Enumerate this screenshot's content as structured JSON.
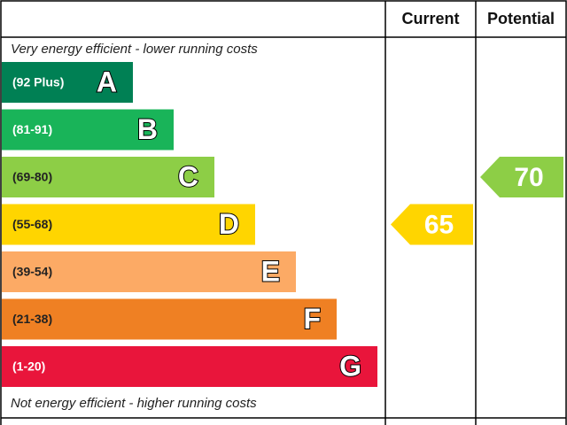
{
  "header": {
    "current": "Current",
    "potential": "Potential"
  },
  "top_note": "Very energy efficient - lower running costs",
  "bottom_note": "Not energy efficient - higher running costs",
  "bands": [
    {
      "range": "(92 Plus)",
      "letter": "A",
      "color": "#008054"
    },
    {
      "range": "(81-91)",
      "letter": "B",
      "color": "#19b459"
    },
    {
      "range": "(69-80)",
      "letter": "C",
      "color": "#8dce46"
    },
    {
      "range": "(55-68)",
      "letter": "D",
      "color": "#ffd500"
    },
    {
      "range": "(39-54)",
      "letter": "E",
      "color": "#fcaa65"
    },
    {
      "range": "(21-38)",
      "letter": "F",
      "color": "#ef8023"
    },
    {
      "range": "(1-20)",
      "letter": "G",
      "color": "#e9153b"
    }
  ],
  "current": {
    "value": 65
  },
  "potential": {
    "value": 70
  }
}
